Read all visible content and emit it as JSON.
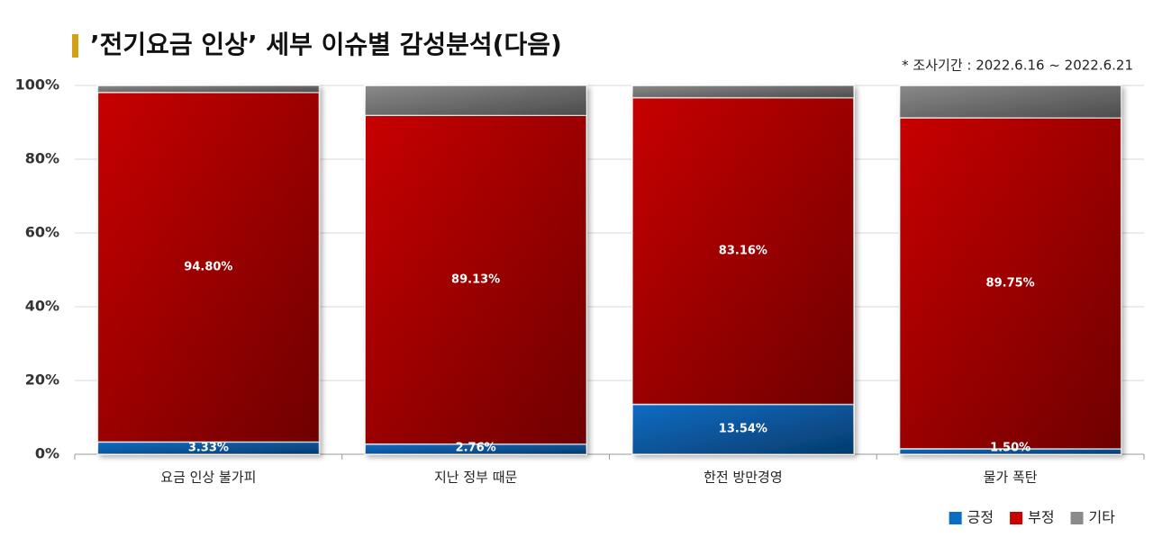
{
  "chart_data": {
    "type": "stacked-bar",
    "title": "’전기요금 인상’ 세부 이슈별 감성분석(다음)",
    "subtitle": "* 조사기간 : 2022.6.16 ~ 2022.6.21",
    "categories": [
      "요금 인상 불가피",
      "지난 정부 때문",
      "한전 방만경영",
      "물가 폭탄"
    ],
    "series": [
      {
        "name": "긍정",
        "color": "#0a6cc4",
        "values": [
          3.33,
          2.76,
          13.54,
          1.5
        ],
        "value_labels": [
          "3.33%",
          "2.76%",
          "13.54%",
          "1.50%"
        ]
      },
      {
        "name": "부정",
        "color": "#c80000",
        "values": [
          94.8,
          89.13,
          83.16,
          89.75
        ],
        "value_labels": [
          "94.80%",
          "89.13%",
          "83.16%",
          "89.75%"
        ]
      },
      {
        "name": "기타",
        "color": "#8a8a8a",
        "values": [
          1.87,
          8.11,
          3.3,
          8.75
        ]
      }
    ],
    "ylim": [
      0,
      100
    ],
    "yticks": [
      {
        "value": 0,
        "label": "0%"
      },
      {
        "value": 20,
        "label": "20%"
      },
      {
        "value": 40,
        "label": "40%"
      },
      {
        "value": 60,
        "label": "60%"
      },
      {
        "value": 80,
        "label": "80%"
      },
      {
        "value": 100,
        "label": "100%"
      }
    ],
    "grid": true,
    "legend": "bottom-right"
  }
}
